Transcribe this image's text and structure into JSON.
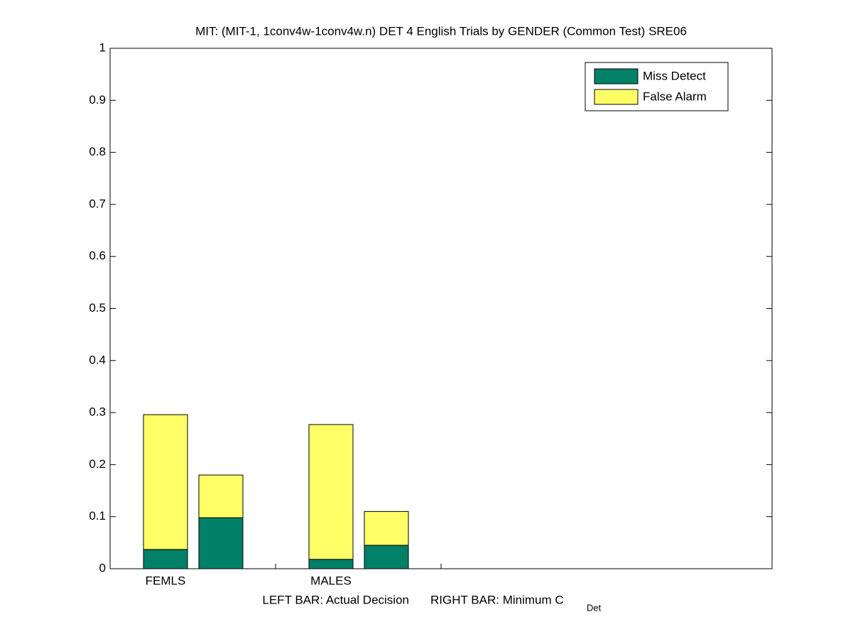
{
  "chart_data": {
    "type": "stacked_bar",
    "title": "MIT: (MIT-1, 1conv4w-1conv4w.n) DET 4 English Trials by GENDER (Common Test) SRE06",
    "categories": [
      "FEMLS",
      null,
      "MALES",
      null
    ],
    "series": [
      {
        "name": "Miss Detect",
        "color": "#008066",
        "values": [
          0.037,
          0.098,
          0.018,
          0.045
        ]
      },
      {
        "name": "False Alarm",
        "color": "#ffff66",
        "values": [
          0.259,
          0.082,
          0.259,
          0.065
        ]
      }
    ],
    "xlabel": {
      "left": "LEFT BAR: Actual Decision",
      "right": "RIGHT BAR: Minimum C",
      "subscript": "Det"
    },
    "ylim": [
      0,
      1
    ],
    "yticks": [
      0,
      0.1,
      0.2,
      0.3,
      0.4,
      0.5,
      0.6,
      0.7,
      0.8,
      0.9,
      1
    ],
    "legend": "upper-right"
  }
}
